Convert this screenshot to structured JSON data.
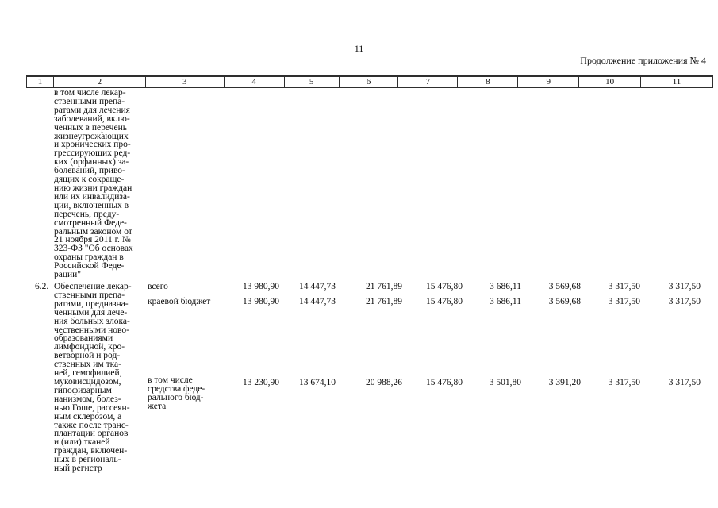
{
  "page": {
    "number": "11",
    "continuation_label": "Продолжение приложения № 4"
  },
  "table": {
    "header": [
      "1",
      "2",
      "3",
      "4",
      "5",
      "6",
      "7",
      "8",
      "9",
      "10",
      "11"
    ],
    "continuation_row": {
      "text": "в том числе лекар-\nственными препа-\nратами для лечения\nзаболеваний, вклю-\nченных в перечень\nжизнеугрожающих\nи хронических про-\nгрессирующих ред-\nких (орфанных) за-\nболеваний, приво-\nдящих к сокраще-\nнию жизни граждан\nили их инвалидиза-\nции, включенных в\nперечень, преду-\nсмотренный Феде-\nральным законом от\n21 ноября 2011 г. №\n323-ФЗ \"Об основах\nохраны граждан в\nРоссийской Феде-\nрации\""
    },
    "row_6_2": {
      "num": "6.2.",
      "title": "Обеспечение лекар-\nственными препа-\nратами, предназна-\nченными для лече-\nния больных злока-\nчественными ново-\nобразованиями\nлимфоидной, кро-\nветворной и род-\nственных им тка-\nней, гемофилией,\nмуковисцидозом,\nгипофизарным\nнанизмом, болез-\nнью Гоше, рассеян-\nным склерозом, а\nтакже после транс-\nплантации органов\nи (или) тканей\nграждан, включен-\nных в региональ-\nный регистр",
      "entries": [
        {
          "label": "всего",
          "values": [
            "13 980,90",
            "14 447,73",
            "21 761,89",
            "15 476,80",
            "3 686,11",
            "3 569,68",
            "3 317,50",
            "3 317,50"
          ]
        },
        {
          "label": "краевой бюджет",
          "values": [
            "13 980,90",
            "14 447,73",
            "21 761,89",
            "15 476,80",
            "3 686,11",
            "3 569,68",
            "3 317,50",
            "3 317,50"
          ]
        },
        {
          "label": "в том числе\nсредства феде-\nрального бюд-\nжета",
          "values": [
            "13 230,90",
            "13 674,10",
            "20 988,26",
            "15 476,80",
            "3 501,80",
            "3 391,20",
            "3 317,50",
            "3 317,50"
          ]
        }
      ]
    }
  }
}
